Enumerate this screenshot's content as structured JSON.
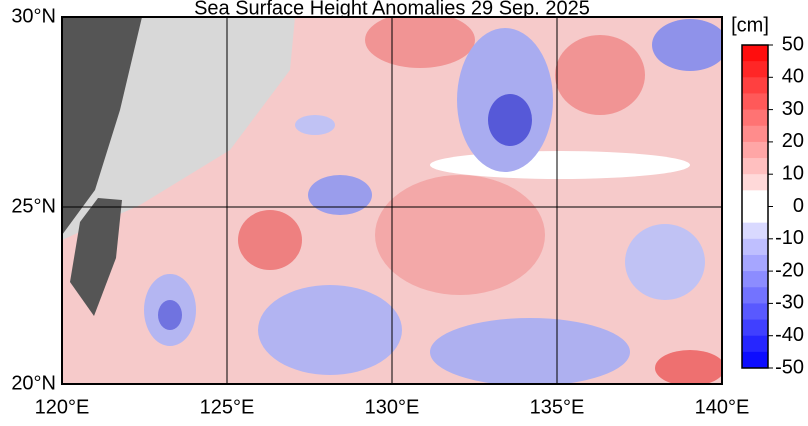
{
  "title": "Sea Surface Height Anomalies  29 Sep. 2025",
  "lat_labels": [
    "30°N",
    "25°N",
    "20°N"
  ],
  "lon_labels": [
    "120°E",
    "125°E",
    "130°E",
    "135°E",
    "140°E"
  ],
  "colorbar": {
    "unit": "[cm]",
    "ticks": [
      50,
      40,
      30,
      20,
      10,
      0,
      -10,
      -20,
      -30,
      -40,
      -50
    ]
  }
}
